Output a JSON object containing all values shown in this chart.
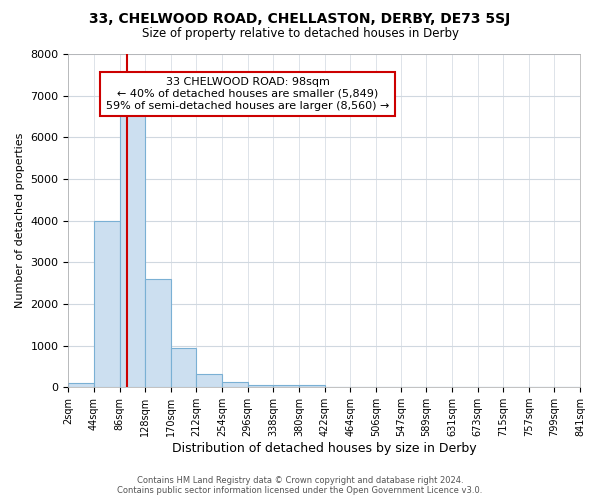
{
  "title": "33, CHELWOOD ROAD, CHELLASTON, DERBY, DE73 5SJ",
  "subtitle": "Size of property relative to detached houses in Derby",
  "xlabel": "Distribution of detached houses by size in Derby",
  "ylabel": "Number of detached properties",
  "footnote1": "Contains HM Land Registry data © Crown copyright and database right 2024.",
  "footnote2": "Contains public sector information licensed under the Open Government Licence v3.0.",
  "annotation_title": "33 CHELWOOD ROAD: 98sqm",
  "annotation_line1": "← 40% of detached houses are smaller (5,849)",
  "annotation_line2": "59% of semi-detached houses are larger (8,560) →",
  "property_size": 98,
  "bar_edges": [
    2,
    44,
    86,
    128,
    170,
    212,
    254,
    296,
    338,
    380,
    422,
    464,
    506,
    547,
    589,
    631,
    673,
    715,
    757,
    799,
    841
  ],
  "bar_heights": [
    100,
    4000,
    6600,
    2600,
    950,
    320,
    130,
    60,
    60,
    60,
    0,
    0,
    0,
    0,
    0,
    0,
    0,
    0,
    0,
    0
  ],
  "bar_color": "#ccdff0",
  "bar_edge_color": "#7ab0d4",
  "vline_color": "#cc0000",
  "annotation_box_color": "#cc0000",
  "grid_color": "#d0d8e0",
  "ylim": [
    0,
    8000
  ],
  "tick_labels": [
    "2sqm",
    "44sqm",
    "86sqm",
    "128sqm",
    "170sqm",
    "212sqm",
    "254sqm",
    "296sqm",
    "338sqm",
    "380sqm",
    "422sqm",
    "464sqm",
    "506sqm",
    "547sqm",
    "589sqm",
    "631sqm",
    "673sqm",
    "715sqm",
    "757sqm",
    "799sqm",
    "841sqm"
  ]
}
